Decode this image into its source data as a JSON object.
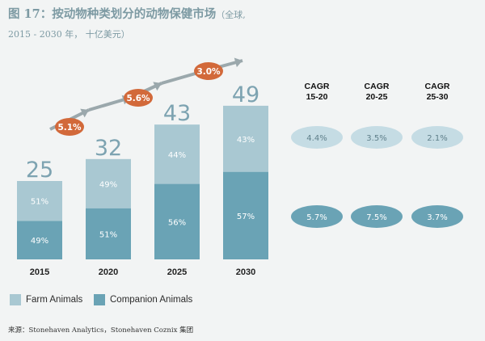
{
  "title": {
    "main": "图 17：按动物种类划分的动物保健市场",
    "sub_inline": "（全球,",
    "sub_line2": "2015 - 2030 年， 十亿美元）"
  },
  "colors": {
    "farm": "#a9c8d2",
    "companion": "#6aa3b5",
    "growth_bubble": "#d2693a",
    "arrow": "#9ba8ac",
    "cagr_top": "#c5dce4",
    "cagr_bottom": "#6aa3b5",
    "total_label": "#7da3b1"
  },
  "chart_data": {
    "type": "bar",
    "stacked": true,
    "categories": [
      "2015",
      "2020",
      "2025",
      "2030"
    ],
    "totals": [
      25,
      32,
      43,
      49
    ],
    "series": [
      {
        "name": "Companion Animals",
        "color_key": "companion",
        "share_labels": [
          "49%",
          "51%",
          "56%",
          "57%"
        ],
        "values": [
          12.25,
          16.32,
          24.08,
          27.93
        ]
      },
      {
        "name": "Farm Animals",
        "color_key": "farm",
        "share_labels": [
          "51%",
          "49%",
          "44%",
          "43%"
        ],
        "values": [
          12.75,
          15.68,
          18.92,
          21.07
        ]
      }
    ],
    "growth_labels": [
      "5.1%",
      "5.6%",
      "3.0%"
    ],
    "ylim": [
      0,
      60
    ]
  },
  "cagr": {
    "headers": [
      {
        "line1": "CAGR",
        "line2": "15-20"
      },
      {
        "line1": "CAGR",
        "line2": "20-25"
      },
      {
        "line1": "CAGR",
        "line2": "25-30"
      }
    ],
    "farm": [
      "4.4%",
      "3.5%",
      "2.1%"
    ],
    "companion": [
      "5.7%",
      "7.5%",
      "3.7%"
    ]
  },
  "legend": [
    {
      "label": "Farm Animals",
      "color_key": "farm"
    },
    {
      "label": "Companion Animals",
      "color_key": "companion"
    }
  ],
  "source": "来源：Stonehaven Analytics，Stonehaven Coznix 集团"
}
